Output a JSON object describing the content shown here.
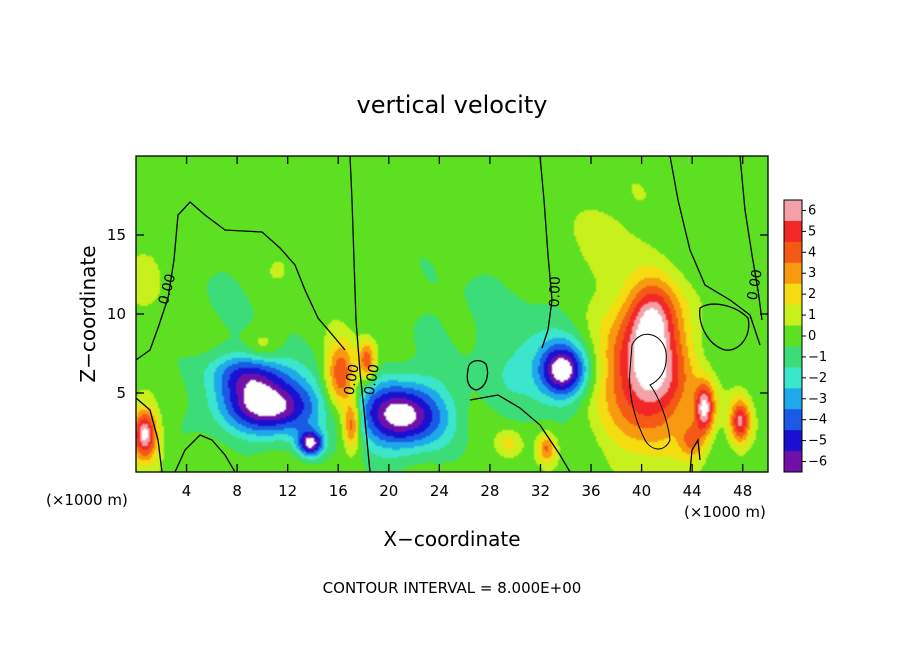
{
  "chart_data": {
    "type": "heatmap",
    "title": "vertical velocity",
    "xlabel": "X−coordinate",
    "ylabel": "Z−coordinate",
    "x_unit_left": "(×1000 m)",
    "x_unit_right": "(×1000 m)",
    "footer": "CONTOUR INTERVAL = 8.000E+00",
    "xlim": [
      0,
      50
    ],
    "ylim": [
      0,
      20
    ],
    "xticks": [
      {
        "v": 4,
        "label": "4"
      },
      {
        "v": 8,
        "label": "8"
      },
      {
        "v": 12,
        "label": "12"
      },
      {
        "v": 16,
        "label": "16"
      },
      {
        "v": 20,
        "label": "20"
      },
      {
        "v": 24,
        "label": "24"
      },
      {
        "v": 28,
        "label": "28"
      },
      {
        "v": 32,
        "label": "32"
      },
      {
        "v": 36,
        "label": "36"
      },
      {
        "v": 40,
        "label": "40"
      },
      {
        "v": 44,
        "label": "44"
      },
      {
        "v": 48,
        "label": "48"
      }
    ],
    "yticks": [
      {
        "v": 5,
        "label": "5"
      },
      {
        "v": 10,
        "label": "10"
      },
      {
        "v": 15,
        "label": "15"
      }
    ],
    "colorbar": {
      "labels": [
        "6",
        "5",
        "4",
        "3",
        "2",
        "1",
        "0",
        "−1",
        "−2",
        "−3",
        "−4",
        "−5",
        "−6"
      ],
      "colors": [
        "#f4a0a8",
        "#f22826",
        "#f45a16",
        "#f79a10",
        "#f4dc10",
        "#c8f01c",
        "#5ce021",
        "#3cdd78",
        "#3ce6cc",
        "#1eaaea",
        "#1a5ae4",
        "#1a10d0",
        "#7010a8"
      ]
    },
    "contour_labels": [
      {
        "x": 2.8,
        "y": 11.5,
        "text": "0.00",
        "rot": -75
      },
      {
        "x": 17.4,
        "y": 5.8,
        "text": "0.00",
        "rot": -80
      },
      {
        "x": 19.0,
        "y": 5.8,
        "text": "0.00",
        "rot": -80
      },
      {
        "x": 33.5,
        "y": 11.4,
        "text": "0.00",
        "rot": -88
      },
      {
        "x": 49.3,
        "y": 11.8,
        "text": "0.00",
        "rot": -80
      }
    ],
    "features": [
      {
        "x": 10.5,
        "z": 4.2,
        "rx": 4.0,
        "rz": 1.9,
        "w": -7.0
      },
      {
        "x": 9.0,
        "z": 6.3,
        "rx": 3.2,
        "rz": 1.3,
        "w": -3.5
      },
      {
        "x": 21.0,
        "z": 3.6,
        "rx": 3.5,
        "rz": 2.2,
        "w": -7.0
      },
      {
        "x": 33.8,
        "z": 6.4,
        "rx": 1.9,
        "rz": 1.7,
        "w": -6.5
      },
      {
        "x": 13.8,
        "z": 1.8,
        "rx": 1.0,
        "rz": 0.8,
        "w": -6.0
      },
      {
        "x": 31.0,
        "z": 6.5,
        "rx": 3.5,
        "rz": 3.0,
        "w": -1.5
      },
      {
        "x": 27.5,
        "z": 10.0,
        "rx": 8.0,
        "rz": 3.5,
        "w": -0.6
      },
      {
        "x": 8.0,
        "z": 11.0,
        "rx": 5.0,
        "rz": 4.0,
        "w": -0.5
      },
      {
        "x": 46.5,
        "z": 8.5,
        "rx": 2.0,
        "rz": 2.0,
        "w": -0.9
      },
      {
        "x": 40.5,
        "z": 6.3,
        "rx": 3.4,
        "rz": 4.3,
        "w": 7.0
      },
      {
        "x": 40.8,
        "z": 10.0,
        "rx": 2.0,
        "rz": 2.2,
        "w": 3.5
      },
      {
        "x": 16.2,
        "z": 6.0,
        "rx": 1.2,
        "rz": 2.2,
        "w": 5.0
      },
      {
        "x": 17.1,
        "z": 3.0,
        "rx": 0.7,
        "rz": 1.6,
        "w": 5.0
      },
      {
        "x": 18.3,
        "z": 7.0,
        "rx": 0.7,
        "rz": 1.3,
        "w": 4.5
      },
      {
        "x": 0.7,
        "z": 2.4,
        "rx": 1.0,
        "rz": 1.6,
        "w": 6.5
      },
      {
        "x": 45.0,
        "z": 4.0,
        "rx": 0.8,
        "rz": 1.6,
        "w": 6.0
      },
      {
        "x": 47.8,
        "z": 3.2,
        "rx": 0.8,
        "rz": 1.4,
        "w": 5.5
      },
      {
        "x": 32.5,
        "z": 1.5,
        "rx": 0.7,
        "rz": 0.9,
        "w": 3.5
      },
      {
        "x": 29.5,
        "z": 1.8,
        "rx": 1.0,
        "rz": 0.9,
        "w": 2.0
      },
      {
        "x": 10.0,
        "z": 8.0,
        "rx": 1.2,
        "rz": 0.9,
        "w": 1.3
      },
      {
        "x": 1.0,
        "z": 12.5,
        "rx": 1.5,
        "rz": 2.0,
        "w": 1.2
      },
      {
        "x": 11.5,
        "z": 13.0,
        "rx": 1.5,
        "rz": 1.5,
        "w": 1.0
      },
      {
        "x": 44.0,
        "z": 2.0,
        "rx": 1.0,
        "rz": 1.2,
        "w": 3.0
      },
      {
        "x": 37.5,
        "z": 15.0,
        "rx": 2.5,
        "rz": 3.5,
        "w": 0.9
      }
    ]
  }
}
